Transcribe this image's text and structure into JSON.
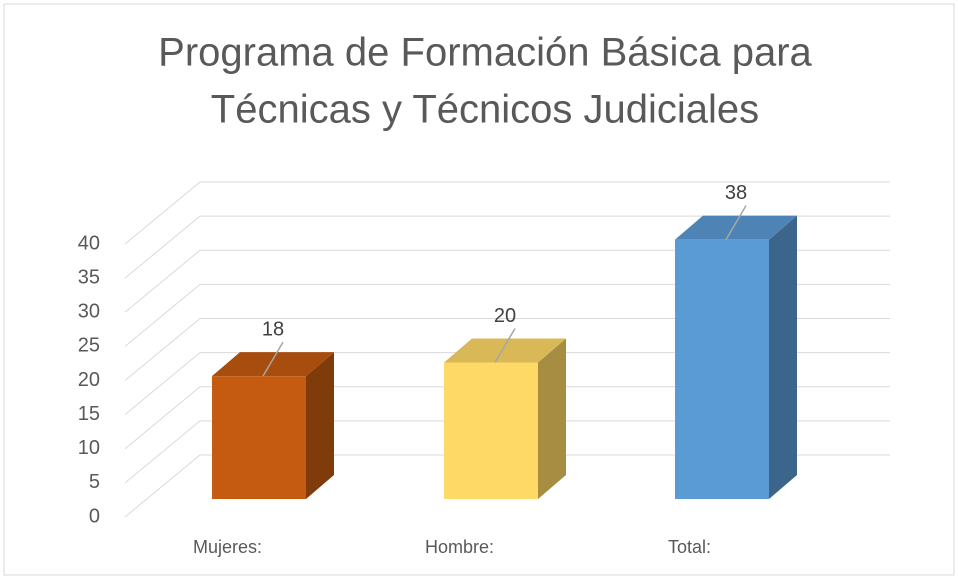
{
  "chart_data": {
    "type": "bar3d",
    "title": [
      "Programa de Formación Básica para",
      "Técnicas y Técnicos Judiciales"
    ],
    "categories": [
      "Mujeres:",
      "Hombre:",
      "Total:"
    ],
    "values": [
      18,
      20,
      38
    ],
    "colors": [
      "#C55A11",
      "#FFD966",
      "#5B9BD5"
    ],
    "ylim": [
      0,
      40
    ],
    "yticks": [
      0,
      5,
      10,
      15,
      20,
      25,
      30,
      35,
      40
    ],
    "grid": true
  }
}
